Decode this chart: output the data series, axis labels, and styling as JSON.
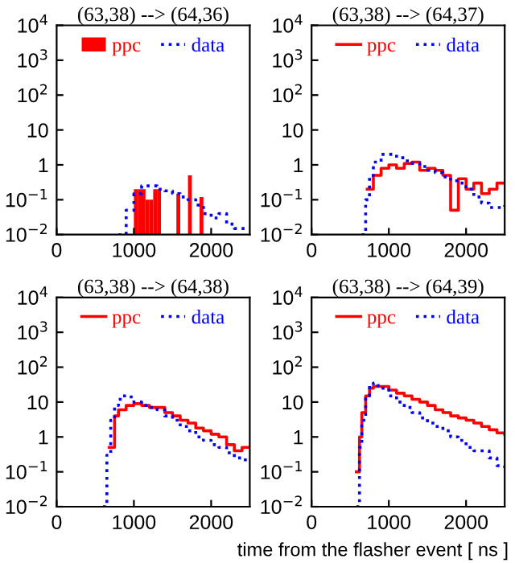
{
  "chart_data": [
    {
      "type": "step",
      "title": "(63,38) --> (64,36)",
      "log": "y",
      "legend": "top",
      "xlim": [
        0,
        2500
      ],
      "ylim": [
        0.01,
        10000
      ],
      "xticks": [
        0,
        1000,
        2000
      ],
      "yticks": [
        {
          "value": 0.01,
          "label": "10$^{−2}$"
        },
        {
          "value": 0.1,
          "label": "10$^{−1}$"
        },
        1,
        10,
        {
          "value": 100,
          "label": "10$^{2}$"
        },
        {
          "value": 1000,
          "label": "10$^{3}$"
        },
        {
          "value": 10000,
          "label": "10$^{4}$"
        }
      ],
      "series": [
        {
          "name": "ppc",
          "type": "bar",
          "color": "#ff0000",
          "x": [
            1000,
            1050,
            1100,
            1150,
            1200,
            1250,
            1300,
            1550,
            1700,
            1850
          ],
          "values": [
            0.2,
            0.2,
            0.2,
            0.1,
            0.1,
            0.2,
            0.2,
            0.15,
            0.5,
            0.12
          ]
        },
        {
          "name": "data",
          "color": "#0000ff",
          "line_style": "dotted",
          "x": [
            800,
            900,
            1000,
            1100,
            1200,
            1300,
            1400,
            1500,
            1600,
            1700,
            1800,
            1900,
            2000,
            2100,
            2200,
            2300,
            2400,
            2500
          ],
          "values": [
            0.01,
            0.05,
            0.15,
            0.25,
            0.25,
            0.2,
            0.18,
            0.15,
            0.12,
            0.1,
            0.07,
            0.04,
            0.03,
            0.04,
            0.02,
            0.015,
            0.015,
            0.015
          ]
        }
      ]
    },
    {
      "type": "step",
      "title": "(63,38) --> (64,37)",
      "log": "y",
      "legend": "top",
      "xlim": [
        0,
        2500
      ],
      "ylim": [
        0.01,
        10000
      ],
      "xticks": [
        0,
        1000,
        2000
      ],
      "yticks": [
        {
          "value": 0.01,
          "label": "10$^{−2}$"
        },
        {
          "value": 0.1,
          "label": "10$^{−1}$"
        },
        1,
        10,
        {
          "value": 100,
          "label": "10$^{2}$"
        },
        {
          "value": 1000,
          "label": "10$^{3}$"
        },
        {
          "value": 10000,
          "label": "10$^{4}$"
        }
      ],
      "series": [
        {
          "name": "ppc",
          "color": "#ff0000",
          "line_style": "solid",
          "x": [
            720,
            800,
            900,
            1000,
            1100,
            1200,
            1300,
            1400,
            1500,
            1600,
            1700,
            1800,
            1900,
            2000,
            2100,
            2200,
            2300,
            2400,
            2500
          ],
          "values": [
            0.2,
            0.5,
            0.8,
            1.0,
            0.8,
            1.1,
            1.2,
            0.7,
            0.8,
            0.7,
            0.5,
            0.05,
            0.4,
            0.2,
            0.3,
            0.15,
            0.2,
            0.3,
            0.3
          ]
        },
        {
          "name": "data",
          "color": "#0000ff",
          "line_style": "dotted",
          "x": [
            650,
            700,
            750,
            800,
            900,
            1000,
            1100,
            1200,
            1300,
            1400,
            1500,
            1600,
            1700,
            1800,
            1900,
            2000,
            2100,
            2200,
            2300,
            2400,
            2500
          ],
          "values": [
            0.01,
            0.1,
            0.5,
            1.2,
            2,
            2,
            1.6,
            1.3,
            1.1,
            0.9,
            0.7,
            0.6,
            0.45,
            0.35,
            0.3,
            0.2,
            0.12,
            0.08,
            0.06,
            0.06,
            0.07
          ]
        }
      ]
    },
    {
      "type": "step",
      "title": "(63,38) --> (64,38)",
      "log": "y",
      "legend": "top",
      "xlim": [
        0,
        2500
      ],
      "ylim": [
        0.01,
        10000
      ],
      "xticks": [
        0,
        1000,
        2000
      ],
      "yticks": [
        {
          "value": 0.01,
          "label": "10$^{−2}$"
        },
        {
          "value": 0.1,
          "label": "10$^{−1}$"
        },
        1,
        10,
        {
          "value": 100,
          "label": "10$^{2}$"
        },
        {
          "value": 1000,
          "label": "10$^{3}$"
        },
        {
          "value": 10000,
          "label": "10$^{4}$"
        }
      ],
      "series": [
        {
          "name": "ppc",
          "color": "#ff0000",
          "line_style": "solid",
          "x": [
            680,
            750,
            800,
            900,
            1000,
            1100,
            1200,
            1300,
            1400,
            1500,
            1600,
            1700,
            1800,
            1900,
            2000,
            2100,
            2200,
            2300,
            2400,
            2500
          ],
          "values": [
            0.5,
            4,
            6,
            8,
            9,
            8,
            7,
            7,
            5,
            4,
            3,
            2.5,
            1.8,
            1.5,
            1.2,
            1,
            0.6,
            0.4,
            0.5,
            0.5
          ]
        },
        {
          "name": "data",
          "color": "#0000ff",
          "line_style": "dotted",
          "x": [
            600,
            650,
            700,
            750,
            800,
            850,
            900,
            1000,
            1100,
            1200,
            1300,
            1400,
            1500,
            1600,
            1700,
            1800,
            1900,
            2000,
            2100,
            2200,
            2300,
            2400,
            2500
          ],
          "values": [
            0.01,
            0.3,
            3,
            8,
            12,
            15,
            14,
            10,
            8,
            7,
            6,
            4,
            3,
            2,
            1.5,
            1,
            0.8,
            0.6,
            0.5,
            0.35,
            0.25,
            0.22,
            0.2
          ]
        }
      ]
    },
    {
      "type": "step",
      "title": "(63,38) --> (64,39)",
      "xlabel": "time from the flasher event [ ns ]",
      "log": "y",
      "legend": "top",
      "xlim": [
        0,
        2500
      ],
      "ylim": [
        0.01,
        10000
      ],
      "xticks": [
        0,
        1000,
        2000
      ],
      "yticks": [
        {
          "value": 0.01,
          "label": "10$^{−2}$"
        },
        {
          "value": 0.1,
          "label": "10$^{−1}$"
        },
        1,
        10,
        {
          "value": 100,
          "label": "10$^{2}$"
        },
        {
          "value": 1000,
          "label": "10$^{3}$"
        },
        {
          "value": 10000,
          "label": "10$^{4}$"
        }
      ],
      "series": [
        {
          "name": "ppc",
          "color": "#ff0000",
          "line_style": "solid",
          "x": [
            580,
            620,
            650,
            700,
            750,
            800,
            900,
            1000,
            1100,
            1200,
            1300,
            1400,
            1500,
            1600,
            1700,
            1800,
            1900,
            2000,
            2100,
            2200,
            2300,
            2400,
            2500
          ],
          "values": [
            0.1,
            1,
            5,
            15,
            25,
            28,
            28,
            22,
            18,
            15,
            12,
            10,
            8,
            6,
            5,
            4,
            3.5,
            3,
            2.5,
            2,
            1.6,
            1.3,
            1.2
          ]
        },
        {
          "name": "data",
          "color": "#0000ff",
          "line_style": "dotted",
          "x": [
            580,
            620,
            650,
            700,
            750,
            800,
            850,
            900,
            1000,
            1100,
            1200,
            1300,
            1400,
            1500,
            1600,
            1700,
            1800,
            1900,
            2000,
            2100,
            2200,
            2300,
            2400,
            2500
          ],
          "values": [
            0.01,
            0.5,
            3,
            15,
            30,
            35,
            30,
            25,
            15,
            10,
            7,
            5,
            3.5,
            2.5,
            2,
            1.5,
            1,
            0.8,
            0.5,
            0.4,
            0.4,
            0.25,
            0.15,
            0.12
          ]
        }
      ]
    }
  ]
}
